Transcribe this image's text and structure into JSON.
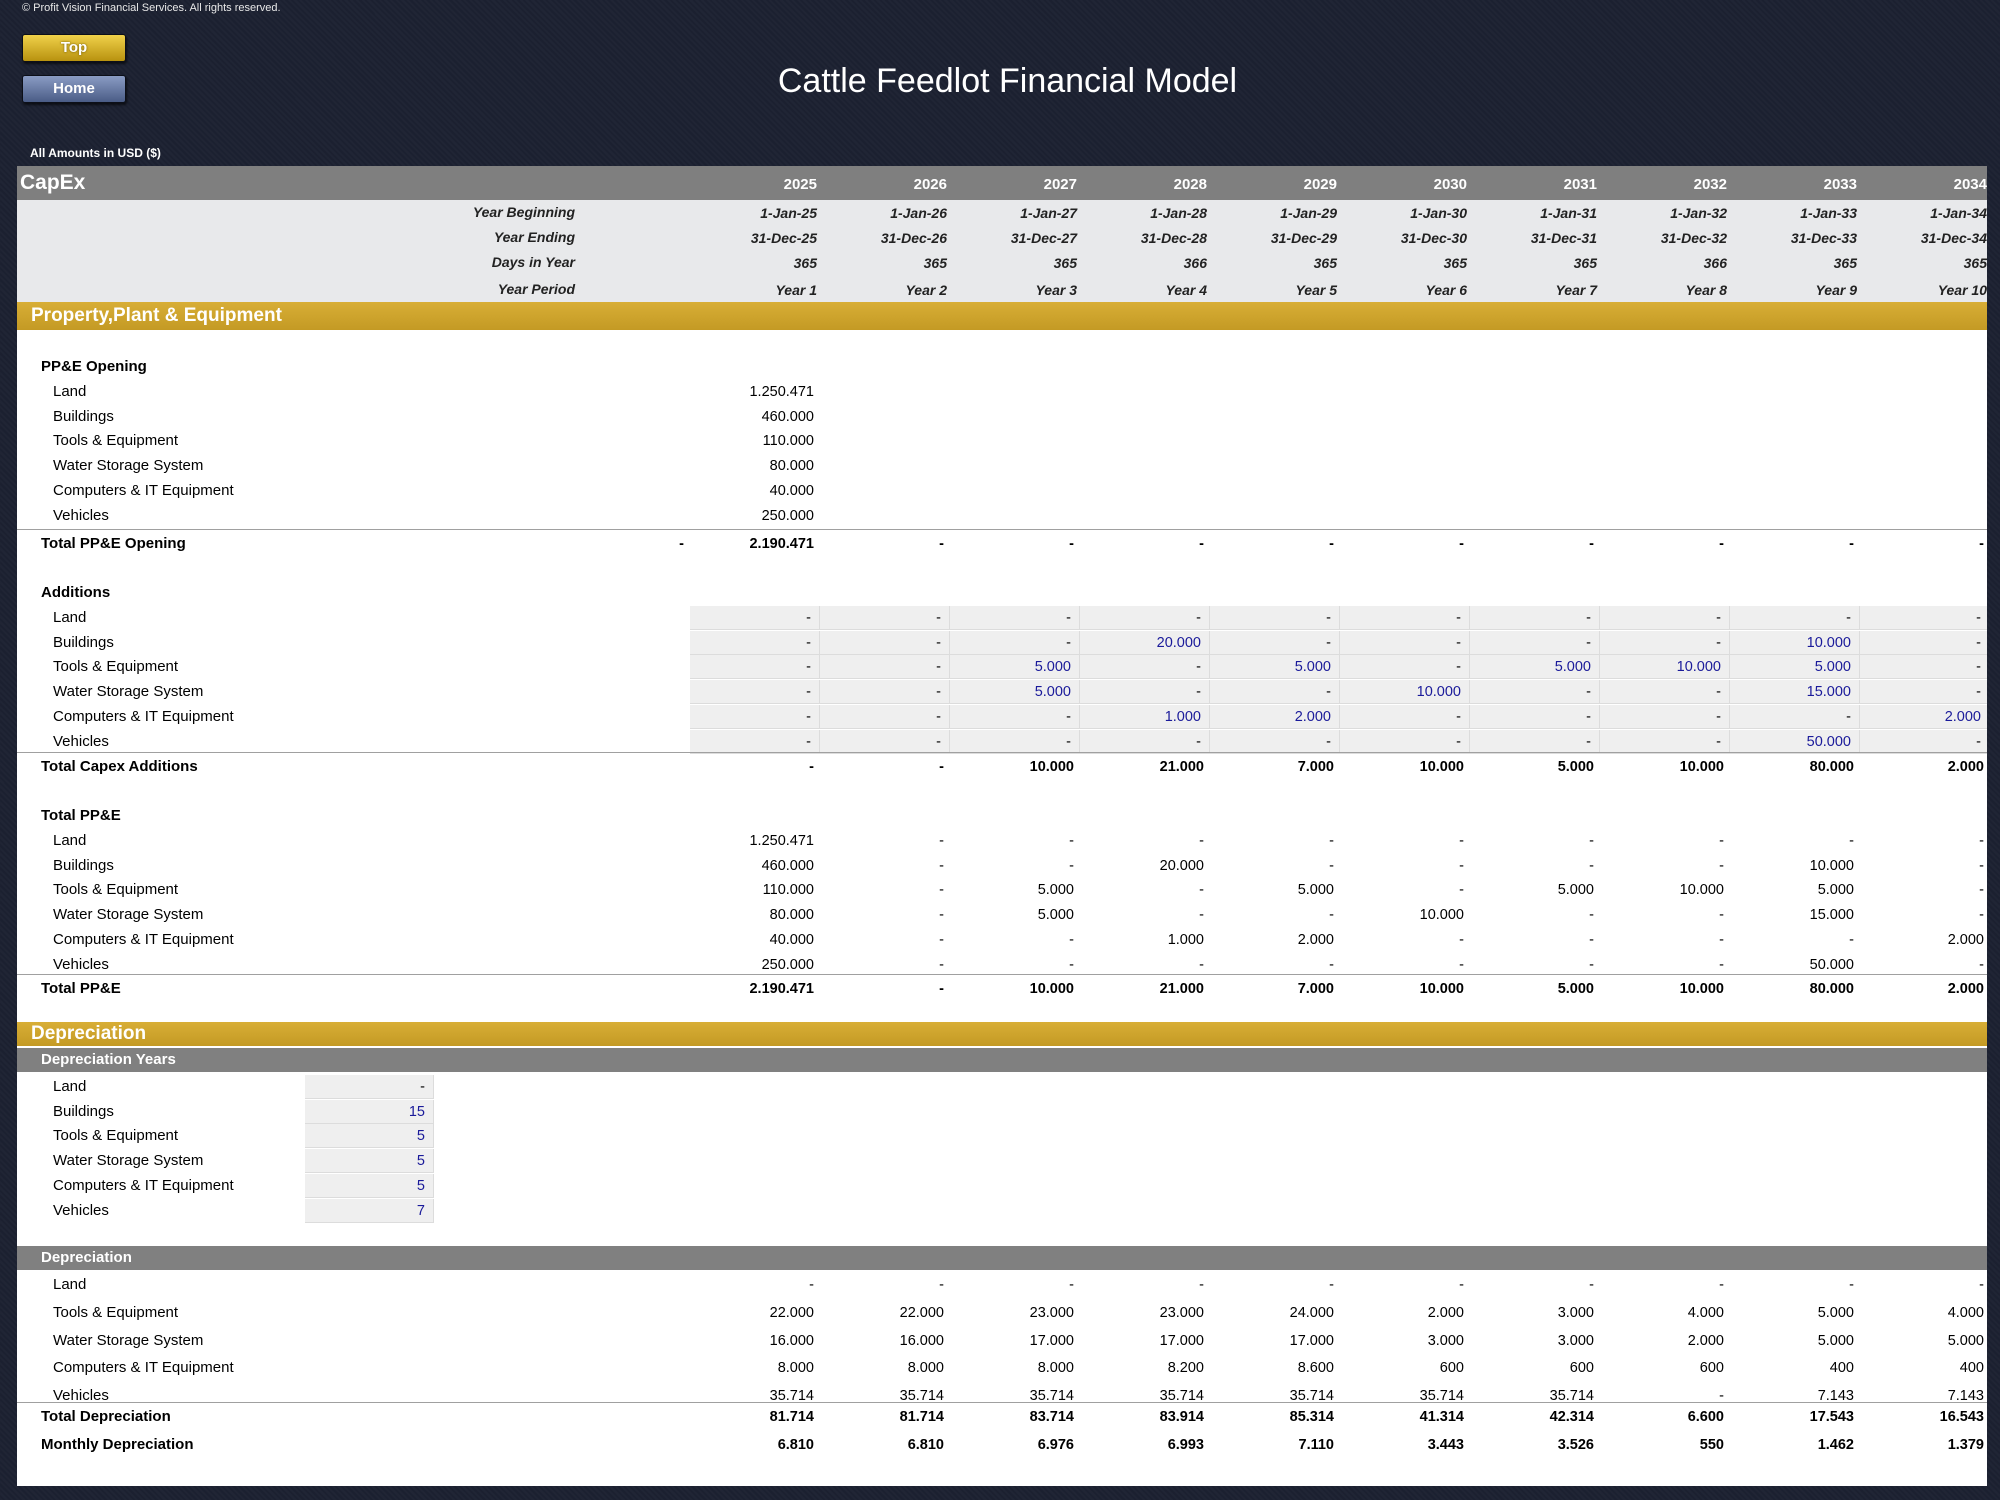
{
  "copyright": "© Profit Vision Financial Services. All rights reserved.",
  "buttons": {
    "top": "Top",
    "home": "Home"
  },
  "title": "Cattle Feedlot Financial Model",
  "amounts_note": "All Amounts in  USD ($)",
  "header": {
    "sheet_label": "CapEx",
    "years": [
      "2025",
      "2026",
      "2027",
      "2028",
      "2029",
      "2030",
      "2031",
      "2032",
      "2033",
      "2034"
    ],
    "timeline": [
      {
        "label": "Year Beginning",
        "values": [
          "1-Jan-25",
          "1-Jan-26",
          "1-Jan-27",
          "1-Jan-28",
          "1-Jan-29",
          "1-Jan-30",
          "1-Jan-31",
          "1-Jan-32",
          "1-Jan-33",
          "1-Jan-34"
        ]
      },
      {
        "label": "Year Ending",
        "values": [
          "31-Dec-25",
          "31-Dec-26",
          "31-Dec-27",
          "31-Dec-28",
          "31-Dec-29",
          "31-Dec-30",
          "31-Dec-31",
          "31-Dec-32",
          "31-Dec-33",
          "31-Dec-34"
        ]
      },
      {
        "label": "Days in Year",
        "values": [
          "365",
          "365",
          "365",
          "366",
          "365",
          "365",
          "365",
          "366",
          "365",
          "365"
        ]
      },
      {
        "label": "Year Period",
        "values": [
          "Year 1",
          "Year 2",
          "Year 3",
          "Year 4",
          "Year 5",
          "Year 6",
          "Year 7",
          "Year 8",
          "Year 9",
          "Year 10"
        ]
      }
    ]
  },
  "ppe": {
    "section_title": "Property,Plant & Equipment",
    "opening": {
      "title": "PP&E Opening",
      "rows": [
        {
          "label": "Land",
          "value": "1.250.471"
        },
        {
          "label": "Buildings",
          "value": "460.000"
        },
        {
          "label": "Tools & Equipment",
          "value": "110.000"
        },
        {
          "label": "Water Storage System",
          "value": "80.000"
        },
        {
          "label": "Computers & IT Equipment",
          "value": "40.000"
        },
        {
          "label": "Vehicles",
          "value": "250.000"
        }
      ],
      "total": {
        "label": "Total PP&E Opening",
        "pre": "-",
        "values": [
          "2.190.471",
          "-",
          "-",
          "-",
          "-",
          "-",
          "-",
          "-",
          "-",
          "-"
        ]
      }
    },
    "additions": {
      "title": "Additions",
      "rows": [
        {
          "label": "Land",
          "values": [
            "-",
            "-",
            "-",
            "-",
            "-",
            "-",
            "-",
            "-",
            "-",
            "-"
          ]
        },
        {
          "label": "Buildings",
          "values": [
            "-",
            "-",
            "-",
            "20.000",
            "-",
            "-",
            "-",
            "-",
            "10.000",
            "-"
          ]
        },
        {
          "label": "Tools & Equipment",
          "values": [
            "-",
            "-",
            "5.000",
            "-",
            "5.000",
            "-",
            "5.000",
            "10.000",
            "5.000",
            "-"
          ]
        },
        {
          "label": "Water Storage System",
          "values": [
            "-",
            "-",
            "5.000",
            "-",
            "-",
            "10.000",
            "-",
            "-",
            "15.000",
            "-"
          ]
        },
        {
          "label": "Computers & IT Equipment",
          "values": [
            "-",
            "-",
            "-",
            "1.000",
            "2.000",
            "-",
            "-",
            "-",
            "-",
            "2.000"
          ]
        },
        {
          "label": "Vehicles",
          "values": [
            "-",
            "-",
            "-",
            "-",
            "-",
            "-",
            "-",
            "-",
            "50.000",
            "-"
          ]
        }
      ],
      "total": {
        "label": "Total Capex Additions",
        "values": [
          "-",
          "-",
          "10.000",
          "21.000",
          "7.000",
          "10.000",
          "5.000",
          "10.000",
          "80.000",
          "2.000"
        ]
      }
    },
    "total_ppe": {
      "title": "Total PP&E",
      "rows": [
        {
          "label": "Land",
          "values": [
            "1.250.471",
            "-",
            "-",
            "-",
            "-",
            "-",
            "-",
            "-",
            "-",
            "-"
          ]
        },
        {
          "label": "Buildings",
          "values": [
            "460.000",
            "-",
            "-",
            "20.000",
            "-",
            "-",
            "-",
            "-",
            "10.000",
            "-"
          ]
        },
        {
          "label": "Tools & Equipment",
          "values": [
            "110.000",
            "-",
            "5.000",
            "-",
            "5.000",
            "-",
            "5.000",
            "10.000",
            "5.000",
            "-"
          ]
        },
        {
          "label": "Water Storage System",
          "values": [
            "80.000",
            "-",
            "5.000",
            "-",
            "-",
            "10.000",
            "-",
            "-",
            "15.000",
            "-"
          ]
        },
        {
          "label": "Computers & IT Equipment",
          "values": [
            "40.000",
            "-",
            "-",
            "1.000",
            "2.000",
            "-",
            "-",
            "-",
            "-",
            "2.000"
          ]
        },
        {
          "label": "Vehicles",
          "values": [
            "250.000",
            "-",
            "-",
            "-",
            "-",
            "-",
            "-",
            "-",
            "50.000",
            "-"
          ]
        }
      ],
      "total": {
        "label": "Total PP&E",
        "values": [
          "2.190.471",
          "-",
          "10.000",
          "21.000",
          "7.000",
          "10.000",
          "5.000",
          "10.000",
          "80.000",
          "2.000"
        ]
      }
    }
  },
  "depreciation": {
    "section_title": "Depreciation",
    "years_header": "Depreciation Years",
    "years_rows": [
      {
        "label": "Land",
        "value": "-"
      },
      {
        "label": "Buildings",
        "value": "15"
      },
      {
        "label": "Tools & Equipment",
        "value": "5"
      },
      {
        "label": "Water Storage System",
        "value": "5"
      },
      {
        "label": "Computers & IT Equipment",
        "value": "5"
      },
      {
        "label": "Vehicles",
        "value": "7"
      }
    ],
    "schedule_header": "Depreciation",
    "rows": [
      {
        "label": "Land",
        "values": [
          "-",
          "-",
          "-",
          "-",
          "-",
          "-",
          "-",
          "-",
          "-",
          "-"
        ]
      },
      {
        "label": "Tools & Equipment",
        "values": [
          "22.000",
          "22.000",
          "23.000",
          "23.000",
          "24.000",
          "2.000",
          "3.000",
          "4.000",
          "5.000",
          "4.000"
        ]
      },
      {
        "label": "Water Storage System",
        "values": [
          "16.000",
          "16.000",
          "17.000",
          "17.000",
          "17.000",
          "3.000",
          "3.000",
          "2.000",
          "5.000",
          "5.000"
        ]
      },
      {
        "label": "Computers & IT Equipment",
        "values": [
          "8.000",
          "8.000",
          "8.000",
          "8.200",
          "8.600",
          "600",
          "600",
          "600",
          "400",
          "400"
        ]
      },
      {
        "label": "Vehicles",
        "values": [
          "35.714",
          "35.714",
          "35.714",
          "35.714",
          "35.714",
          "35.714",
          "35.714",
          "-",
          "7.143",
          "7.143"
        ]
      }
    ],
    "total": {
      "label": "Total Depreciation",
      "values": [
        "81.714",
        "81.714",
        "83.714",
        "83.914",
        "85.314",
        "41.314",
        "42.314",
        "6.600",
        "17.543",
        "16.543"
      ]
    },
    "monthly": {
      "label": "Monthly Depreciation",
      "values": [
        "6.810",
        "6.810",
        "6.976",
        "6.993",
        "7.110",
        "3.443",
        "3.526",
        "550",
        "1.462",
        "1.379"
      ]
    }
  },
  "colors": {
    "gold": "#c9a02a",
    "grey_header": "#7f7f7f",
    "input_blue": "#1a1a9a",
    "background": "#1b2030"
  }
}
